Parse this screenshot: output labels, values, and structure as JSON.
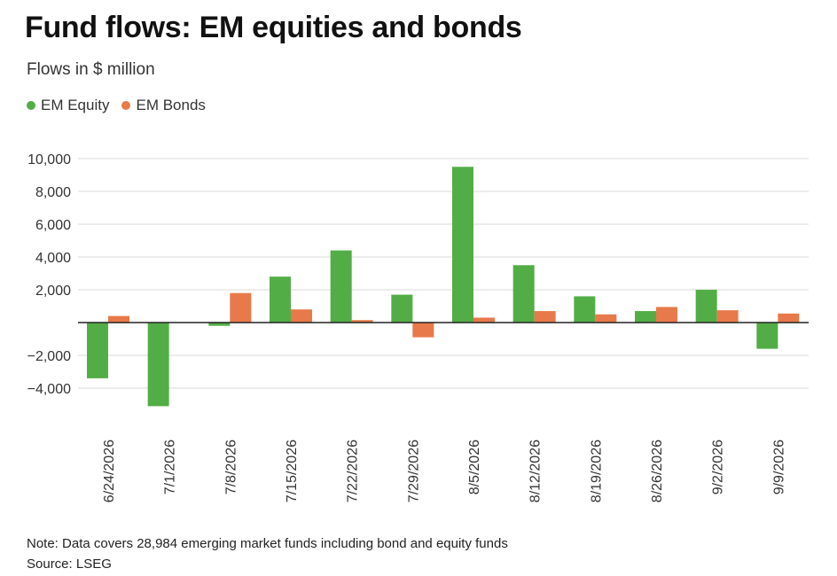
{
  "header": {
    "title": "Fund flows: EM equities and bonds",
    "subtitle": "Flows in $ million"
  },
  "footer": {
    "note": "Note: Data covers 28,984 emerging market funds including bond and equity funds",
    "source": "Source: LSEG"
  },
  "colors": {
    "equity": "#53ad47",
    "bonds": "#e8794a",
    "grid": "#d9d9d9",
    "zero_line": "#222222"
  },
  "chart_data": {
    "type": "bar",
    "title": "Fund flows: EM equities and bonds",
    "subtitle": "Flows in $ million",
    "legend_position": "top-left",
    "grid": true,
    "ylim": [
      -6000,
      10000
    ],
    "yticks": [
      -4000,
      -2000,
      2000,
      4000,
      6000,
      8000,
      10000
    ],
    "ytick_labels": [
      "−4,000",
      "−2,000",
      "2,000",
      "4,000",
      "6,000",
      "8,000",
      "10,000"
    ],
    "categories": [
      "6/24/2026",
      "7/1/2026",
      "7/8/2026",
      "7/15/2026",
      "7/22/2026",
      "7/29/2026",
      "8/5/2026",
      "8/12/2026",
      "8/19/2026",
      "8/26/2026",
      "9/2/2026",
      "9/9/2026"
    ],
    "series": [
      {
        "name": "EM Equity",
        "values": [
          -3400,
          -5100,
          -200,
          2800,
          4400,
          1700,
          9500,
          3500,
          1600,
          700,
          2000,
          -1600
        ]
      },
      {
        "name": "EM Bonds",
        "values": [
          400,
          0,
          1800,
          800,
          150,
          -900,
          300,
          700,
          500,
          950,
          750,
          550
        ]
      }
    ]
  }
}
